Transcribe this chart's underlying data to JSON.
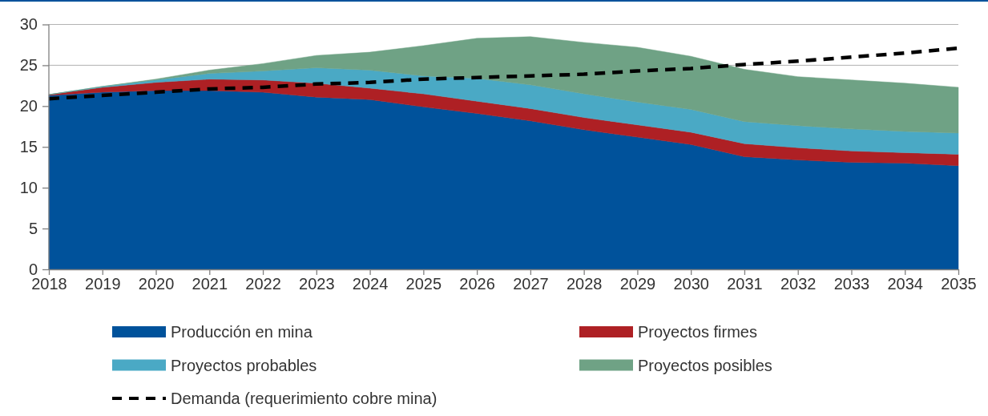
{
  "chart_data": {
    "type": "area",
    "stacked": true,
    "categories": [
      "2018",
      "2019",
      "2020",
      "2021",
      "2022",
      "2023",
      "2024",
      "2025",
      "2026",
      "2027",
      "2028",
      "2029",
      "2030",
      "2031",
      "2032",
      "2033",
      "2034",
      "2035"
    ],
    "series": [
      {
        "name": "Producción en mina",
        "color": "#00529b",
        "values": [
          21.3,
          21.7,
          21.9,
          21.9,
          21.7,
          21.1,
          20.8,
          19.9,
          19.1,
          18.2,
          17.1,
          16.2,
          15.3,
          13.8,
          13.4,
          13.1,
          13.0,
          12.7
        ]
      },
      {
        "name": "Proyectos firmes",
        "color": "#ae2024",
        "values": [
          0.1,
          0.6,
          1.0,
          1.4,
          1.5,
          1.7,
          1.4,
          1.6,
          1.5,
          1.5,
          1.5,
          1.5,
          1.5,
          1.6,
          1.5,
          1.4,
          1.3,
          1.4
        ]
      },
      {
        "name": "Proyectos probables",
        "color": "#4aa9c5",
        "values": [
          0.0,
          0.1,
          0.3,
          0.7,
          1.1,
          1.9,
          2.2,
          2.2,
          2.8,
          2.9,
          2.9,
          2.8,
          2.8,
          2.7,
          2.7,
          2.7,
          2.6,
          2.6
        ]
      },
      {
        "name": "Proyectos posibles",
        "color": "#6fa285",
        "values": [
          0.0,
          0.0,
          0.1,
          0.4,
          0.9,
          1.5,
          2.2,
          3.7,
          4.9,
          5.9,
          6.3,
          6.7,
          6.5,
          6.4,
          6.0,
          6.0,
          5.9,
          5.6
        ]
      },
      {
        "name": "Demanda (requerimiento cobre mina)",
        "type": "line",
        "line_style": "dashed",
        "color": "#000000",
        "values": [
          20.9,
          21.3,
          21.7,
          22.1,
          22.3,
          22.7,
          22.9,
          23.3,
          23.5,
          23.7,
          23.9,
          24.3,
          24.6,
          25.1,
          25.5,
          26.0,
          26.5,
          27.1
        ]
      }
    ],
    "ylim": [
      0,
      30
    ],
    "yticks": [
      0,
      5,
      10,
      15,
      20,
      25,
      30
    ],
    "grid": "y",
    "legend": "bottom"
  }
}
